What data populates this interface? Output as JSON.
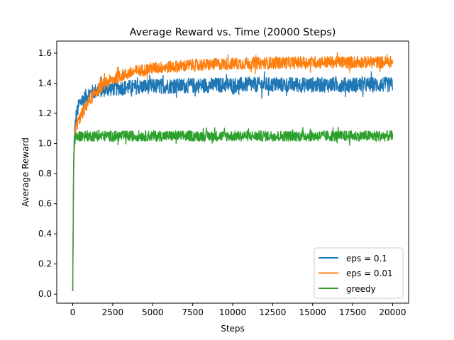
{
  "chart_data": {
    "type": "line",
    "title": "Average Reward vs. Time (20000 Steps)",
    "xlabel": "Steps",
    "ylabel": "Average Reward",
    "xlim": [
      -1000,
      21000
    ],
    "ylim": [
      -0.06,
      1.68
    ],
    "xticks": [
      0,
      2500,
      5000,
      7500,
      10000,
      12500,
      15000,
      17500,
      20000
    ],
    "yticks": [
      0.0,
      0.2,
      0.4,
      0.6,
      0.8,
      1.0,
      1.2,
      1.4,
      1.6
    ],
    "grid": false,
    "legend_position": "lower-right",
    "series": [
      {
        "name": "eps = 0.1",
        "color": "#1f77b4",
        "noise_band": 0.05,
        "x": [
          0,
          50,
          100,
          200,
          400,
          700,
          1000,
          1500,
          2000,
          3000,
          4000,
          5000,
          7500,
          10000,
          12500,
          15000,
          17500,
          20000
        ],
        "values": [
          0.02,
          0.85,
          1.05,
          1.18,
          1.26,
          1.3,
          1.33,
          1.35,
          1.36,
          1.37,
          1.375,
          1.38,
          1.385,
          1.39,
          1.39,
          1.39,
          1.39,
          1.39
        ]
      },
      {
        "name": "eps = 0.01",
        "color": "#ff7f0e",
        "noise_band": 0.04,
        "x": [
          0,
          50,
          100,
          200,
          400,
          700,
          1000,
          1500,
          2000,
          3000,
          4000,
          5000,
          7500,
          10000,
          12500,
          15000,
          17500,
          20000
        ],
        "values": [
          0.02,
          0.75,
          1.0,
          1.11,
          1.16,
          1.22,
          1.28,
          1.35,
          1.4,
          1.45,
          1.48,
          1.5,
          1.52,
          1.53,
          1.535,
          1.54,
          1.54,
          1.54
        ]
      },
      {
        "name": "greedy",
        "color": "#2ca02c",
        "noise_band": 0.035,
        "x": [
          0,
          50,
          100,
          200,
          400,
          1000,
          5000,
          10000,
          15000,
          20000
        ],
        "values": [
          0.02,
          0.8,
          1.02,
          1.04,
          1.05,
          1.05,
          1.05,
          1.05,
          1.05,
          1.05
        ]
      }
    ]
  }
}
